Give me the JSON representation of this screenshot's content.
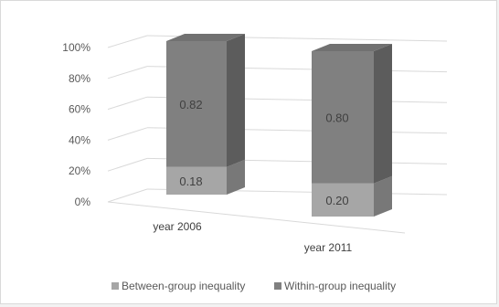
{
  "chart_data": {
    "type": "bar",
    "stacked": true,
    "percent_stacked": true,
    "three_d": true,
    "categories": [
      "year 2006",
      "year 2011"
    ],
    "series": [
      {
        "name": "Between-group inequality",
        "values": [
          0.18,
          0.2
        ],
        "labels": [
          "0.18",
          "0.20"
        ],
        "color": "#a6a6a6"
      },
      {
        "name": "Within-group inequality",
        "values": [
          0.82,
          0.8
        ],
        "labels": [
          "0.82",
          "0.80"
        ],
        "color": "#808080"
      }
    ],
    "yticks": [
      "0%",
      "20%",
      "40%",
      "60%",
      "80%",
      "100%"
    ],
    "ylim": [
      0,
      1
    ],
    "grid": true,
    "legend_position": "bottom",
    "title": "",
    "xlabel": "",
    "ylabel": ""
  }
}
